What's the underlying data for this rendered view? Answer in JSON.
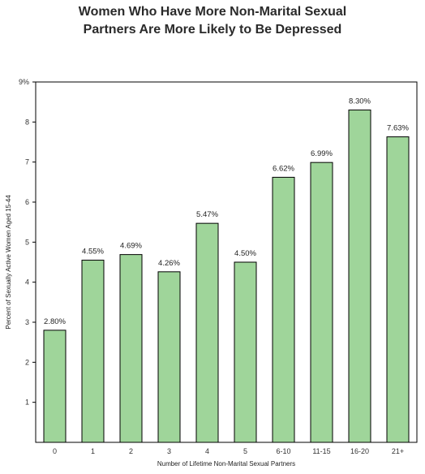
{
  "chart_data": {
    "type": "bar",
    "title_lines": [
      "Women Who Have More Non-Marital Sexual",
      "Partners Are More Likely to Be Depressed"
    ],
    "xlabel": "Number of Lifetime Non-Marital Sexual Partners",
    "ylabel": "Percent of Sexually Active Women Aged 15-44",
    "categories": [
      "0",
      "1",
      "2",
      "3",
      "4",
      "5",
      "6-10",
      "11-15",
      "16-20",
      "21+"
    ],
    "values": [
      2.8,
      4.55,
      4.69,
      4.26,
      5.47,
      4.5,
      6.62,
      6.99,
      8.3,
      7.63
    ],
    "data_labels": [
      "2.80%",
      "4.55%",
      "4.69%",
      "4.26%",
      "5.47%",
      "4.50%",
      "6.62%",
      "6.99%",
      "8.30%",
      "7.63%"
    ],
    "yticks": [
      1,
      2,
      3,
      4,
      5,
      6,
      7,
      8,
      9
    ],
    "ytick_labels": [
      "1",
      "2",
      "3",
      "4",
      "5",
      "6",
      "7",
      "8",
      "9%"
    ],
    "ylim": [
      0,
      9
    ],
    "grid": false,
    "legend": "none",
    "bar_color": "#9fd59a",
    "bar_edge_color": "#000000"
  }
}
